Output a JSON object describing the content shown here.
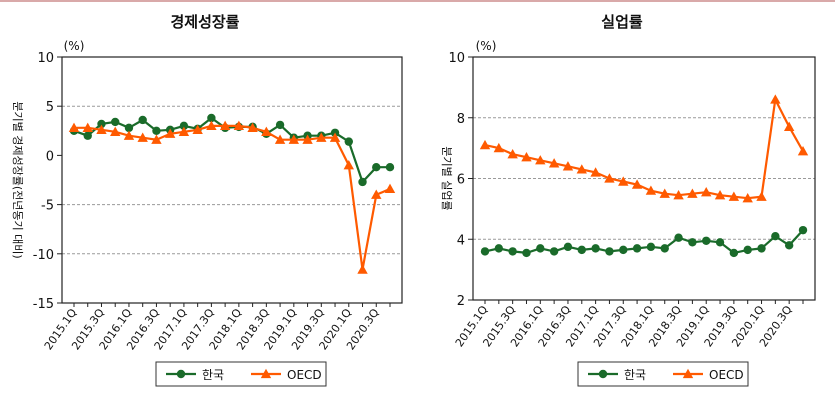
{
  "chart_data": [
    {
      "type": "line",
      "title": "경제성장률",
      "unit": "(%)",
      "ylabel": "분기별 경제성장률(전년동기 대비)",
      "ylim": [
        -15,
        10
      ],
      "yticks": [
        -15,
        -10,
        -5,
        0,
        5,
        10
      ],
      "gridlines": [
        -10,
        -5,
        5
      ],
      "categories": [
        "2015.1Q",
        "2015.2Q",
        "2015.3Q",
        "2015.4Q",
        "2016.1Q",
        "2016.2Q",
        "2016.3Q",
        "2016.4Q",
        "2017.1Q",
        "2017.2Q",
        "2017.3Q",
        "2017.4Q",
        "2018.1Q",
        "2018.2Q",
        "2018.3Q",
        "2018.4Q",
        "2019.1Q",
        "2019.2Q",
        "2019.3Q",
        "2019.4Q",
        "2020.1Q",
        "2020.2Q",
        "2020.3Q",
        "2020.4Q"
      ],
      "xtick_labels": [
        "2015.1Q",
        "2015.3Q",
        "2016.1Q",
        "2016.3Q",
        "2017.1Q",
        "2017.3Q",
        "2018.1Q",
        "2018.3Q",
        "2019.1Q",
        "2019.3Q",
        "2020.1Q",
        "2020.3Q"
      ],
      "series": [
        {
          "name": "한국",
          "color": "#1a6b2a",
          "marker": "circle",
          "values": [
            2.5,
            2.0,
            3.2,
            3.4,
            2.8,
            3.6,
            2.5,
            2.6,
            3.0,
            2.7,
            3.8,
            2.8,
            2.9,
            2.9,
            2.2,
            3.1,
            1.8,
            2.0,
            2.0,
            2.3,
            1.4,
            -2.7,
            -1.2,
            -1.2
          ]
        },
        {
          "name": "OECD",
          "color": "#ff5a00",
          "marker": "triangle",
          "values": [
            2.8,
            2.8,
            2.6,
            2.4,
            2.0,
            1.8,
            1.6,
            2.2,
            2.4,
            2.6,
            3.0,
            3.0,
            3.0,
            2.8,
            2.4,
            1.6,
            1.6,
            1.6,
            1.8,
            1.8,
            -1.0,
            -11.6,
            -4.0,
            -3.4
          ]
        }
      ],
      "legend": [
        "한국",
        "OECD"
      ],
      "legend_position": "bottom"
    },
    {
      "type": "line",
      "title": "실업률",
      "unit": "(%)",
      "ylabel": "분기별 실업률",
      "ylim": [
        2,
        10
      ],
      "yticks": [
        2,
        4,
        6,
        8,
        10
      ],
      "gridlines": [
        4,
        6,
        8
      ],
      "categories": [
        "2015.1Q",
        "2015.2Q",
        "2015.3Q",
        "2015.4Q",
        "2016.1Q",
        "2016.2Q",
        "2016.3Q",
        "2016.4Q",
        "2017.1Q",
        "2017.2Q",
        "2017.3Q",
        "2017.4Q",
        "2018.1Q",
        "2018.2Q",
        "2018.3Q",
        "2018.4Q",
        "2019.1Q",
        "2019.2Q",
        "2019.3Q",
        "2019.4Q",
        "2020.1Q",
        "2020.2Q",
        "2020.3Q",
        "2020.4Q"
      ],
      "xtick_labels": [
        "2015.1Q",
        "2015.3Q",
        "2016.1Q",
        "2016.3Q",
        "2017.1Q",
        "2017.3Q",
        "2018.1Q",
        "2018.3Q",
        "2019.1Q",
        "2019.3Q",
        "2020.1Q",
        "2020.3Q"
      ],
      "series": [
        {
          "name": "한국",
          "color": "#1a6b2a",
          "marker": "circle",
          "values": [
            3.6,
            3.7,
            3.6,
            3.55,
            3.7,
            3.6,
            3.75,
            3.65,
            3.7,
            3.6,
            3.65,
            3.7,
            3.75,
            3.7,
            4.05,
            3.9,
            3.95,
            3.9,
            3.55,
            3.65,
            3.7,
            4.1,
            3.8,
            4.3
          ]
        },
        {
          "name": "OECD",
          "color": "#ff5a00",
          "marker": "triangle",
          "values": [
            7.1,
            7.0,
            6.8,
            6.7,
            6.6,
            6.5,
            6.4,
            6.3,
            6.2,
            6.0,
            5.9,
            5.8,
            5.6,
            5.5,
            5.45,
            5.5,
            5.55,
            5.45,
            5.4,
            5.35,
            5.4,
            8.6,
            7.7,
            6.9
          ]
        }
      ],
      "legend": [
        "한국",
        "OECD"
      ],
      "legend_position": "bottom"
    }
  ]
}
